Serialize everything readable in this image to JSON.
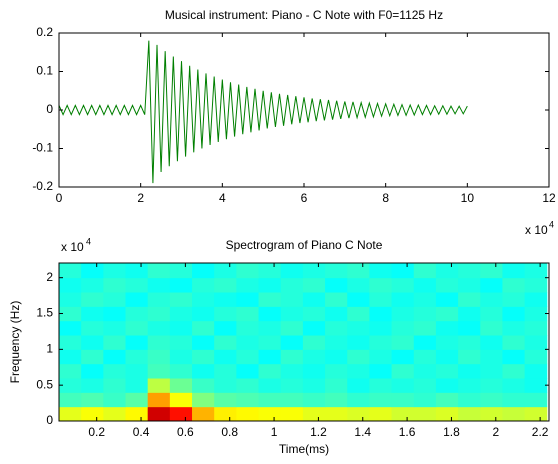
{
  "chart_data": [
    {
      "type": "line",
      "title": "Musical instrument: Piano - C Note with F0=1125 Hz",
      "x_multiplier": "x 10",
      "x_multiplier_exp": "4",
      "color": "#007f00",
      "xlim": [
        0,
        120000
      ],
      "xticks": [
        {
          "value": 0,
          "label": "0"
        },
        {
          "value": 20000,
          "label": "2"
        },
        {
          "value": 40000,
          "label": "4"
        },
        {
          "value": 60000,
          "label": "6"
        },
        {
          "value": 80000,
          "label": "8"
        },
        {
          "value": 100000,
          "label": "10"
        },
        {
          "value": 120000,
          "label": "12"
        }
      ],
      "ylim": [
        -0.2,
        0.2
      ],
      "yticks": [
        -0.2,
        -0.1,
        0,
        0.1,
        0.2
      ],
      "x": [
        0,
        1000,
        2000,
        3000,
        4000,
        5000,
        6000,
        7000,
        8000,
        9000,
        10000,
        11000,
        12000,
        13000,
        14000,
        15000,
        16000,
        17000,
        18000,
        19000,
        20000,
        21000,
        22000,
        23000,
        24000,
        25000,
        26000,
        27000,
        28000,
        29000,
        30000,
        31000,
        32000,
        33000,
        34000,
        35000,
        36000,
        37000,
        38000,
        39000,
        40000,
        41000,
        42000,
        43000,
        44000,
        45000,
        46000,
        47000,
        48000,
        49000,
        50000,
        51000,
        52000,
        53000,
        54000,
        55000,
        56000,
        57000,
        58000,
        59000,
        60000,
        61000,
        62000,
        63000,
        64000,
        65000,
        66000,
        67000,
        68000,
        69000,
        70000,
        71000,
        72000,
        73000,
        74000,
        75000,
        76000,
        77000,
        78000,
        79000,
        80000,
        81000,
        82000,
        83000,
        84000,
        85000,
        86000,
        87000,
        88000,
        89000,
        90000,
        91000,
        92000,
        93000,
        94000,
        95000,
        96000,
        97000,
        98000,
        99000,
        100000
      ],
      "values": [
        0.012,
        -0.012,
        0.012,
        -0.012,
        0.012,
        -0.012,
        0.012,
        -0.012,
        0.012,
        -0.012,
        0.012,
        -0.012,
        0.012,
        -0.012,
        0.012,
        -0.012,
        0.012,
        -0.012,
        0.012,
        -0.012,
        0.012,
        -0.012,
        0.18,
        -0.19,
        0.169,
        -0.161,
        0.153,
        -0.146,
        0.139,
        -0.133,
        0.127,
        -0.121,
        0.115,
        -0.11,
        0.105,
        -0.1,
        0.095,
        -0.091,
        0.087,
        -0.083,
        0.079,
        -0.076,
        0.072,
        -0.069,
        0.066,
        -0.063,
        0.06,
        -0.058,
        0.055,
        -0.053,
        0.05,
        -0.048,
        0.046,
        -0.044,
        0.042,
        -0.041,
        0.039,
        -0.037,
        0.036,
        -0.034,
        0.033,
        -0.032,
        0.03,
        -0.029,
        0.028,
        -0.027,
        0.026,
        -0.025,
        0.024,
        -0.023,
        0.022,
        -0.021,
        0.021,
        -0.02,
        0.019,
        -0.019,
        0.018,
        -0.018,
        0.017,
        -0.016,
        0.016,
        -0.015,
        0.015,
        -0.014,
        0.014,
        -0.014,
        0.013,
        -0.013,
        0.013,
        -0.012,
        0.012,
        -0.012,
        0.011,
        -0.011,
        0.011,
        -0.011,
        0.01,
        -0.01,
        0.01,
        -0.01,
        0.01
      ]
    },
    {
      "type": "heatmap",
      "title": "Spectrogram of Piano C Note",
      "xlabel": "Time(ms)",
      "ylabel": "Frequency (Hz)",
      "y_multiplier": "x 10",
      "y_multiplier_exp": "4",
      "colormap": "jet",
      "clim": [
        0,
        1
      ],
      "xlim": [
        0.03,
        2.24
      ],
      "xticks": [
        0.2,
        0.4,
        0.6,
        0.8,
        1,
        1.2,
        1.4,
        1.6,
        1.8,
        2,
        2.2
      ],
      "ylim": [
        0,
        22050
      ],
      "yticks": [
        {
          "value": 0,
          "label": "0"
        },
        {
          "value": 5000,
          "label": "0.5"
        },
        {
          "value": 10000,
          "label": "1"
        },
        {
          "value": 15000,
          "label": "1.5"
        },
        {
          "value": 20000,
          "label": "2"
        }
      ],
      "x": [
        0.08,
        0.18,
        0.28,
        0.38,
        0.48,
        0.58,
        0.68,
        0.78,
        0.88,
        0.98,
        1.08,
        1.18,
        1.28,
        1.38,
        1.48,
        1.58,
        1.68,
        1.78,
        1.88,
        1.98,
        2.08,
        2.18
      ],
      "y": [
        1000,
        3000,
        5000,
        7000,
        9000,
        11000,
        13000,
        15000,
        17000,
        19000,
        21000
      ],
      "values": [
        [
          0.6,
          0.62,
          0.6,
          0.63,
          0.92,
          0.86,
          0.7,
          0.64,
          0.63,
          0.62,
          0.62,
          0.6,
          0.6,
          0.59,
          0.6,
          0.58,
          0.58,
          0.59,
          0.57,
          0.58,
          0.57,
          0.58
        ],
        [
          0.44,
          0.45,
          0.43,
          0.46,
          0.72,
          0.62,
          0.5,
          0.46,
          0.45,
          0.44,
          0.44,
          0.43,
          0.44,
          0.42,
          0.43,
          0.43,
          0.42,
          0.44,
          0.42,
          0.43,
          0.42,
          0.42
        ],
        [
          0.41,
          0.4,
          0.42,
          0.4,
          0.56,
          0.48,
          0.43,
          0.41,
          0.42,
          0.4,
          0.41,
          0.4,
          0.42,
          0.39,
          0.41,
          0.4,
          0.41,
          0.39,
          0.4,
          0.41,
          0.4,
          0.39
        ],
        [
          0.42,
          0.38,
          0.41,
          0.4,
          0.44,
          0.42,
          0.39,
          0.41,
          0.38,
          0.42,
          0.4,
          0.39,
          0.41,
          0.4,
          0.38,
          0.42,
          0.4,
          0.41,
          0.39,
          0.4,
          0.42,
          0.39
        ],
        [
          0.39,
          0.42,
          0.38,
          0.41,
          0.43,
          0.4,
          0.42,
          0.39,
          0.41,
          0.38,
          0.42,
          0.4,
          0.39,
          0.42,
          0.4,
          0.38,
          0.41,
          0.39,
          0.42,
          0.4,
          0.38,
          0.41
        ],
        [
          0.41,
          0.39,
          0.42,
          0.38,
          0.42,
          0.41,
          0.38,
          0.42,
          0.4,
          0.41,
          0.38,
          0.42,
          0.4,
          0.39,
          0.41,
          0.42,
          0.38,
          0.4,
          0.41,
          0.39,
          0.42,
          0.4
        ],
        [
          0.38,
          0.41,
          0.4,
          0.42,
          0.4,
          0.39,
          0.42,
          0.38,
          0.41,
          0.4,
          0.42,
          0.38,
          0.41,
          0.4,
          0.39,
          0.41,
          0.42,
          0.39,
          0.38,
          0.42,
          0.4,
          0.41
        ],
        [
          0.42,
          0.39,
          0.38,
          0.41,
          0.42,
          0.4,
          0.39,
          0.41,
          0.42,
          0.38,
          0.4,
          0.41,
          0.39,
          0.42,
          0.38,
          0.4,
          0.41,
          0.42,
          0.39,
          0.41,
          0.38,
          0.4
        ],
        [
          0.4,
          0.42,
          0.41,
          0.38,
          0.41,
          0.42,
          0.4,
          0.39,
          0.38,
          0.42,
          0.41,
          0.39,
          0.42,
          0.38,
          0.41,
          0.39,
          0.4,
          0.38,
          0.42,
          0.4,
          0.41,
          0.39
        ],
        [
          0.39,
          0.4,
          0.42,
          0.41,
          0.39,
          0.38,
          0.41,
          0.42,
          0.4,
          0.39,
          0.41,
          0.42,
          0.38,
          0.4,
          0.42,
          0.41,
          0.39,
          0.41,
          0.4,
          0.38,
          0.42,
          0.41
        ],
        [
          0.41,
          0.38,
          0.4,
          0.39,
          0.42,
          0.41,
          0.38,
          0.4,
          0.42,
          0.41,
          0.39,
          0.4,
          0.41,
          0.42,
          0.39,
          0.38,
          0.42,
          0.4,
          0.41,
          0.42,
          0.39,
          0.4
        ]
      ]
    }
  ]
}
